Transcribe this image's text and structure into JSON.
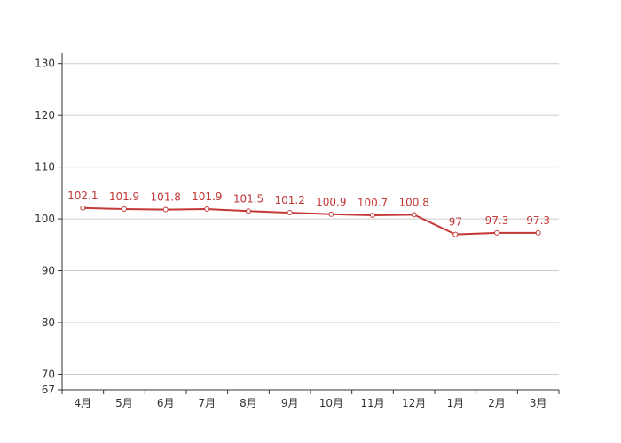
{
  "chart_data": {
    "type": "line",
    "categories": [
      "4月",
      "5月",
      "6月",
      "7月",
      "8月",
      "9月",
      "10月",
      "11月",
      "12月",
      "1月",
      "2月",
      "3月"
    ],
    "series": [
      {
        "values": [
          102.1,
          101.9,
          101.8,
          101.9,
          101.5,
          101.2,
          100.9,
          100.7,
          100.8,
          97,
          97.3,
          97.3
        ]
      }
    ],
    "data_labels": [
      "102.1",
      "101.9",
      "101.8",
      "101.9",
      "101.5",
      "101.2",
      "100.9",
      "100.7",
      "100.8",
      "97",
      "97.3",
      "97.3"
    ],
    "ylim": [
      67,
      132
    ],
    "yticks": [
      67,
      70,
      80,
      90,
      100,
      110,
      120,
      130
    ],
    "ytick_labels": [
      "67",
      "70",
      "80",
      "90",
      "100",
      "110",
      "120",
      "130"
    ],
    "grid": true,
    "colors": {
      "line": "#c43838",
      "label": "#c43838",
      "grid": "#cccccc",
      "axis": "#333333",
      "marker_fill": "#ffffff"
    }
  }
}
